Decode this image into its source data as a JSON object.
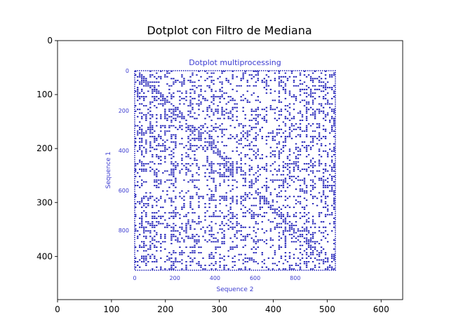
{
  "chart_data": {
    "type": "heatmap",
    "title": "Dotplot con Filtro de Mediana",
    "x_ticks": [
      "0",
      "100",
      "200",
      "300",
      "400",
      "500",
      "600"
    ],
    "y_ticks": [
      "0",
      "100",
      "200",
      "300",
      "400"
    ],
    "xlim": [
      0,
      640
    ],
    "ylim": [
      480,
      0
    ],
    "image": {
      "title": "Dotplot multiprocessing",
      "xlabel": "Sequence 2",
      "ylabel": "Sequence 1",
      "x_ticks": [
        "0",
        "200",
        "400",
        "600",
        "800"
      ],
      "y_ticks": [
        "0",
        "200",
        "400",
        "600",
        "800"
      ],
      "seq_range": [
        0,
        1000
      ],
      "dot_color": "#1a1ab5",
      "label_color": "#3b3bd0"
    }
  }
}
